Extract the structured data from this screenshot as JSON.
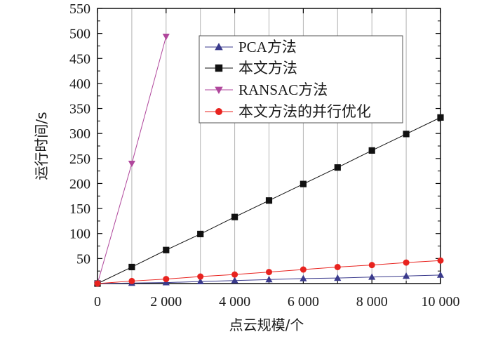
{
  "chart_data": {
    "type": "line",
    "title": "",
    "xlabel": "点云规模/个",
    "ylabel": "运行时间/s",
    "xlim": [
      0,
      10000
    ],
    "ylim": [
      0,
      550
    ],
    "x_ticks": [
      0,
      2000,
      4000,
      6000,
      8000,
      10000
    ],
    "x_tick_labels": [
      "0",
      "2 000",
      "4 000",
      "6 000",
      "8 000",
      "10 000"
    ],
    "y_ticks": [
      50,
      100,
      150,
      200,
      250,
      300,
      350,
      400,
      450,
      500,
      550
    ],
    "y_tick_labels": [
      "50",
      "100",
      "150",
      "200",
      "250",
      "300",
      "350",
      "400",
      "450",
      "500",
      "550"
    ],
    "grid": "vertical",
    "legend_position": "top-right",
    "series": [
      {
        "name": "PCA方法",
        "color": "#3a3a8c",
        "marker": "triangle-up",
        "x": [
          0,
          1000,
          2000,
          3000,
          4000,
          5000,
          6000,
          7000,
          8000,
          9000,
          10000
        ],
        "values": [
          0,
          1,
          2,
          4,
          6,
          8,
          10,
          11,
          13,
          15,
          17
        ]
      },
      {
        "name": "本文方法",
        "color": "#111111",
        "marker": "square",
        "x": [
          0,
          1000,
          2000,
          3000,
          4000,
          5000,
          6000,
          7000,
          8000,
          9000,
          10000
        ],
        "values": [
          0,
          33,
          67,
          99,
          133,
          166,
          199,
          232,
          266,
          299,
          332
        ]
      },
      {
        "name": "RANSAC方法",
        "color": "#b0479c",
        "marker": "triangle-down",
        "x": [
          0,
          1000,
          2000
        ],
        "values": [
          0,
          240,
          494
        ]
      },
      {
        "name": "本文方法的并行优化",
        "color": "#e8231f",
        "marker": "circle",
        "x": [
          0,
          1000,
          2000,
          3000,
          4000,
          5000,
          6000,
          7000,
          8000,
          9000,
          10000
        ],
        "values": [
          0,
          5,
          9,
          14,
          18,
          23,
          28,
          33,
          37,
          42,
          46
        ]
      }
    ]
  }
}
